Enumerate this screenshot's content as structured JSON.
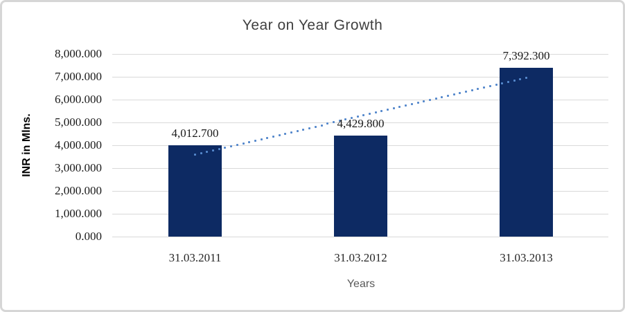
{
  "chart_data": {
    "type": "bar",
    "title": "Year on Year Growth",
    "xlabel": "Years",
    "ylabel": "INR in Mlns.",
    "categories": [
      "31.03.2011",
      "31.03.2012",
      "31.03.2013"
    ],
    "values": [
      4012.7,
      4429.8,
      7392.3
    ],
    "data_labels": [
      "4,012.700",
      "4,429.800",
      "7,392.300"
    ],
    "ylim": [
      0,
      8000
    ],
    "ytick_step": 1000,
    "yticks": [
      "8,000.000",
      "7,000.000",
      "6,000.000",
      "5,000.000",
      "4,000.000",
      "3,000.000",
      "2,000.000",
      "1,000.000",
      "0.000"
    ],
    "grid": true,
    "legend": "none",
    "bar_color": "#0d2a63",
    "trendline": {
      "type": "linear",
      "style": "dotted",
      "color": "#5588cc",
      "start_value": 3588,
      "end_value": 6968
    }
  }
}
